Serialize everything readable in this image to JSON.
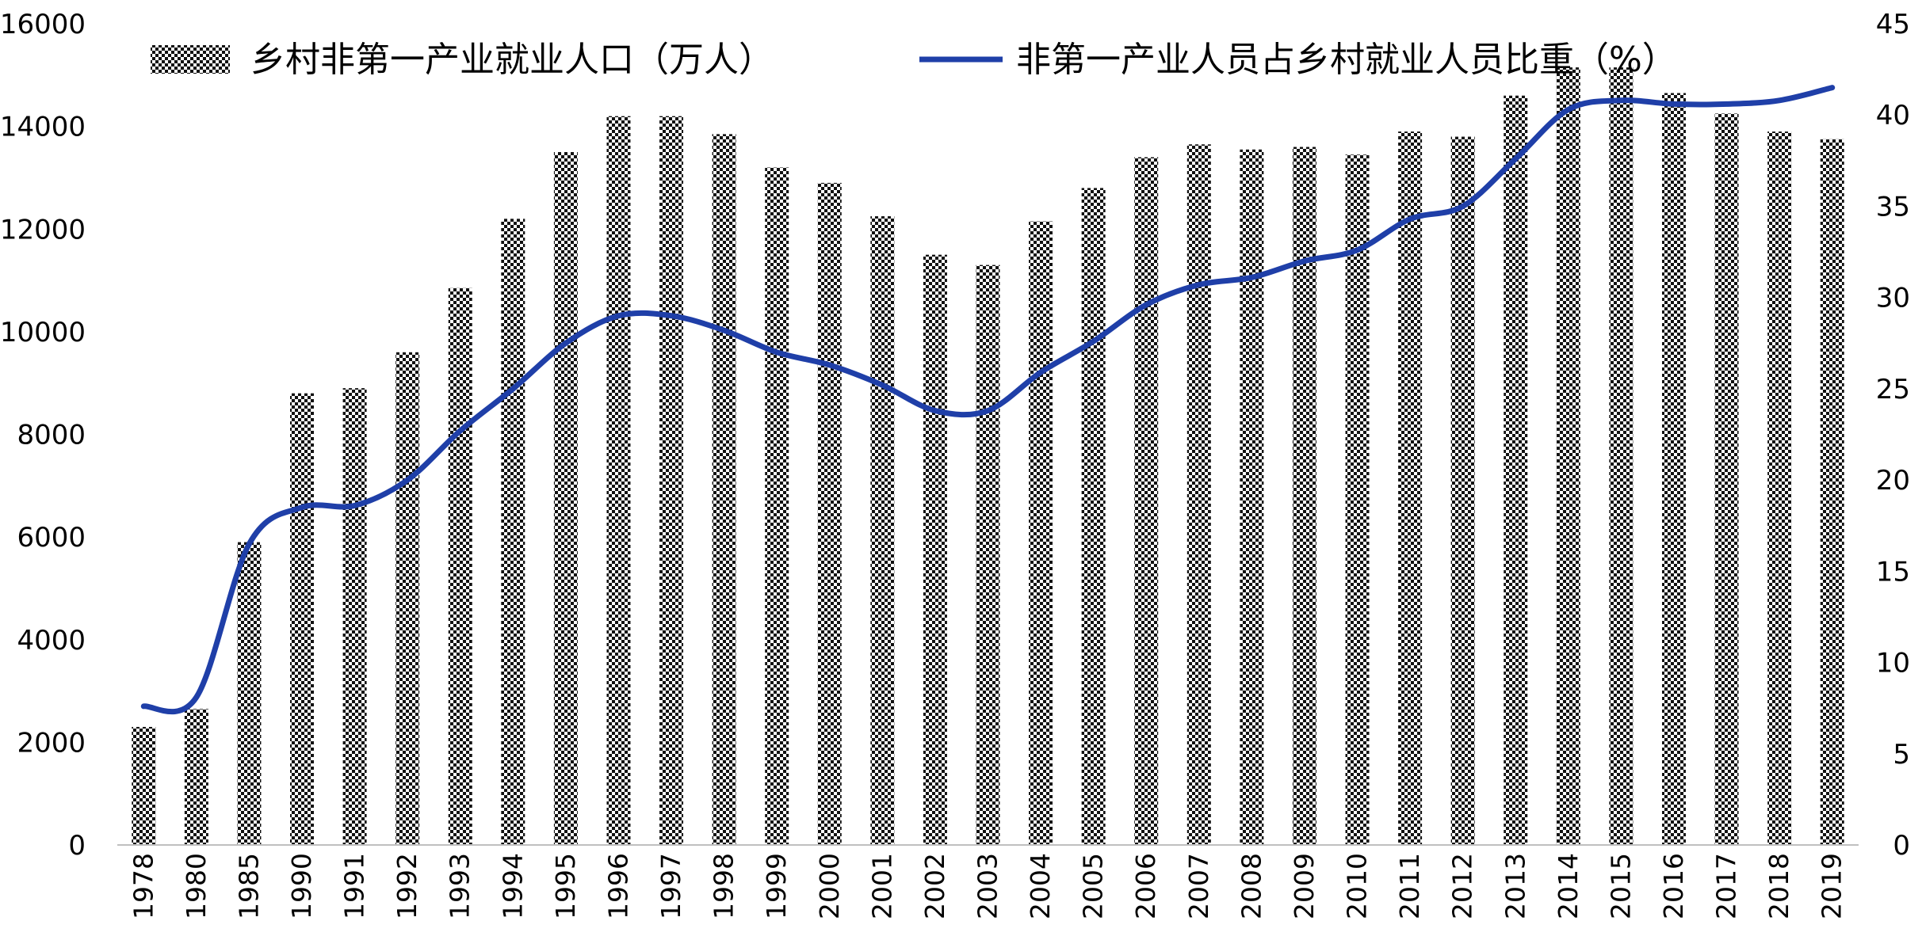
{
  "chart_data": {
    "type": "bar",
    "categories": [
      "1978",
      "1980",
      "1985",
      "1990",
      "1991",
      "1992",
      "1993",
      "1994",
      "1995",
      "1996",
      "1997",
      "1998",
      "1999",
      "2000",
      "2001",
      "2002",
      "2003",
      "2004",
      "2005",
      "2006",
      "2007",
      "2008",
      "2009",
      "2010",
      "2011",
      "2012",
      "2013",
      "2014",
      "2015",
      "2016",
      "2017",
      "2018",
      "2019"
    ],
    "series": [
      {
        "name": "乡村非第一产业就业人口（万人）",
        "type": "bar",
        "axis": "left",
        "pattern": "checkered",
        "values": [
          2300,
          2650,
          5900,
          8800,
          8900,
          9600,
          10850,
          12200,
          13500,
          14200,
          14200,
          13850,
          13200,
          12900,
          12250,
          11500,
          11300,
          12150,
          12800,
          13400,
          13650,
          13550,
          13600,
          13450,
          13900,
          13800,
          14600,
          15150,
          15150,
          14650,
          14250,
          13900,
          13750
        ]
      },
      {
        "name": "非第一产业人员占乡村就业人员比重（%）",
        "type": "line",
        "axis": "right",
        "color": "#1f3fa8",
        "values": [
          7.6,
          8.1,
          16.5,
          18.5,
          18.6,
          20.0,
          22.7,
          25.0,
          27.5,
          29.0,
          29.0,
          28.2,
          27.0,
          26.3,
          25.2,
          23.8,
          23.8,
          25.9,
          27.6,
          29.6,
          30.7,
          31.1,
          32.0,
          32.6,
          34.3,
          35.0,
          37.6,
          40.3,
          40.8,
          40.6,
          40.6,
          40.8,
          41.5
        ]
      }
    ],
    "y_left": {
      "ylim": [
        0,
        16000
      ],
      "ticks": [
        "0",
        "2000",
        "4000",
        "6000",
        "8000",
        "10000",
        "12000",
        "14000",
        "16000"
      ]
    },
    "y_right": {
      "ylim": [
        0,
        45
      ],
      "ticks": [
        "0",
        "5",
        "10",
        "15",
        "20",
        "25",
        "30",
        "35",
        "40",
        "45"
      ]
    },
    "legend_position": "top",
    "grid": false
  }
}
